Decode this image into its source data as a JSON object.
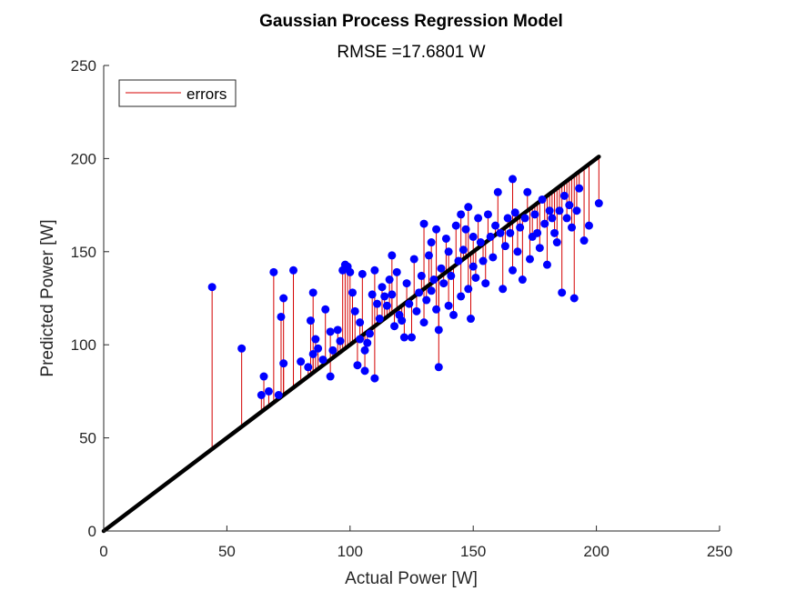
{
  "chart_data": {
    "type": "scatter",
    "title": "Gaussian Process Regression Model",
    "subtitle": "RMSE =17.6801 W",
    "xlabel": "Actual Power [W]",
    "ylabel": "Predicted Power [W]",
    "xlim": [
      0,
      250
    ],
    "ylim": [
      0,
      250
    ],
    "xticks": [
      "0",
      "50",
      "100",
      "150",
      "200",
      "250"
    ],
    "yticks": [
      "0",
      "50",
      "100",
      "150",
      "200",
      "250"
    ],
    "grid": false,
    "legend": {
      "position": "top-left",
      "entries": [
        "errors"
      ]
    },
    "colors": {
      "points": "#0000ff",
      "errors": "#d40000",
      "reference": "#000000"
    },
    "reference_line": {
      "x": [
        0,
        201
      ],
      "y": [
        0,
        201
      ]
    },
    "points": [
      [
        44,
        131
      ],
      [
        56,
        98
      ],
      [
        64,
        73
      ],
      [
        65,
        83
      ],
      [
        67,
        75
      ],
      [
        69,
        139
      ],
      [
        71,
        73
      ],
      [
        72,
        115
      ],
      [
        73,
        90
      ],
      [
        73,
        125
      ],
      [
        77,
        140
      ],
      [
        80,
        91
      ],
      [
        83,
        88
      ],
      [
        84,
        113
      ],
      [
        85,
        128
      ],
      [
        85,
        95
      ],
      [
        86,
        103
      ],
      [
        87,
        98
      ],
      [
        89,
        92
      ],
      [
        90,
        119
      ],
      [
        92,
        107
      ],
      [
        92,
        83
      ],
      [
        93,
        97
      ],
      [
        95,
        108
      ],
      [
        96,
        102
      ],
      [
        97,
        140
      ],
      [
        98,
        143
      ],
      [
        99,
        142
      ],
      [
        100,
        139
      ],
      [
        101,
        128
      ],
      [
        102,
        118
      ],
      [
        103,
        89
      ],
      [
        104,
        103
      ],
      [
        104,
        112
      ],
      [
        105,
        138
      ],
      [
        106,
        97
      ],
      [
        106,
        86
      ],
      [
        107,
        101
      ],
      [
        108,
        106
      ],
      [
        109,
        127
      ],
      [
        110,
        140
      ],
      [
        110,
        82
      ],
      [
        111,
        122
      ],
      [
        112,
        114
      ],
      [
        113,
        131
      ],
      [
        114,
        126
      ],
      [
        115,
        121
      ],
      [
        116,
        135
      ],
      [
        117,
        127
      ],
      [
        117,
        148
      ],
      [
        118,
        110
      ],
      [
        119,
        139
      ],
      [
        120,
        116
      ],
      [
        121,
        113
      ],
      [
        122,
        104
      ],
      [
        123,
        133
      ],
      [
        124,
        122
      ],
      [
        125,
        104
      ],
      [
        126,
        146
      ],
      [
        127,
        118
      ],
      [
        128,
        128
      ],
      [
        129,
        137
      ],
      [
        130,
        112
      ],
      [
        130,
        165
      ],
      [
        131,
        124
      ],
      [
        132,
        148
      ],
      [
        133,
        129
      ],
      [
        133,
        155
      ],
      [
        134,
        135
      ],
      [
        135,
        119
      ],
      [
        135,
        162
      ],
      [
        136,
        108
      ],
      [
        136,
        88
      ],
      [
        137,
        141
      ],
      [
        138,
        133
      ],
      [
        139,
        157
      ],
      [
        140,
        121
      ],
      [
        140,
        150
      ],
      [
        141,
        137
      ],
      [
        142,
        116
      ],
      [
        143,
        164
      ],
      [
        144,
        145
      ],
      [
        145,
        126
      ],
      [
        145,
        170
      ],
      [
        146,
        151
      ],
      [
        147,
        162
      ],
      [
        148,
        130
      ],
      [
        148,
        174
      ],
      [
        149,
        114
      ],
      [
        150,
        142
      ],
      [
        150,
        158
      ],
      [
        151,
        136
      ],
      [
        152,
        168
      ],
      [
        153,
        155
      ],
      [
        154,
        145
      ],
      [
        155,
        133
      ],
      [
        156,
        170
      ],
      [
        157,
        158
      ],
      [
        158,
        147
      ],
      [
        159,
        164
      ],
      [
        160,
        182
      ],
      [
        161,
        160
      ],
      [
        162,
        130
      ],
      [
        163,
        153
      ],
      [
        164,
        168
      ],
      [
        165,
        160
      ],
      [
        166,
        189
      ],
      [
        166,
        140
      ],
      [
        167,
        171
      ],
      [
        168,
        150
      ],
      [
        169,
        163
      ],
      [
        170,
        135
      ],
      [
        171,
        168
      ],
      [
        172,
        182
      ],
      [
        173,
        146
      ],
      [
        174,
        158
      ],
      [
        175,
        170
      ],
      [
        176,
        160
      ],
      [
        177,
        152
      ],
      [
        178,
        178
      ],
      [
        179,
        165
      ],
      [
        180,
        143
      ],
      [
        181,
        172
      ],
      [
        182,
        168
      ],
      [
        183,
        160
      ],
      [
        184,
        155
      ],
      [
        185,
        172
      ],
      [
        186,
        128
      ],
      [
        187,
        180
      ],
      [
        188,
        168
      ],
      [
        189,
        175
      ],
      [
        190,
        163
      ],
      [
        191,
        125
      ],
      [
        192,
        172
      ],
      [
        193,
        184
      ],
      [
        195,
        156
      ],
      [
        197,
        164
      ],
      [
        201,
        176
      ]
    ]
  }
}
